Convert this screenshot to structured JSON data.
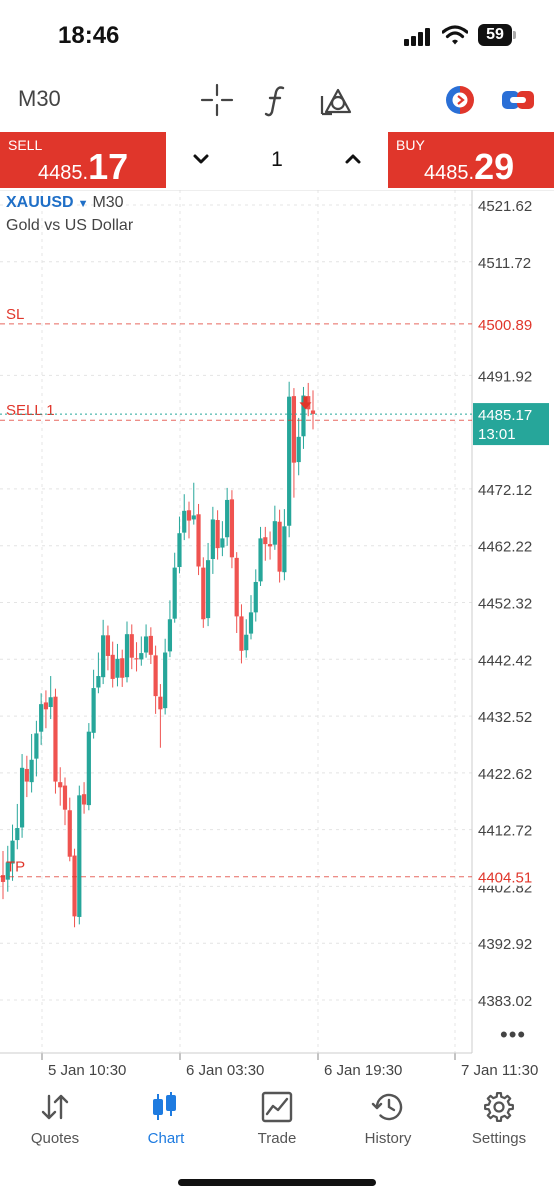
{
  "status_bar": {
    "time": "18:46",
    "battery": "59"
  },
  "toolbar": {
    "timeframe": "M30",
    "icons": [
      "crosshair-icon",
      "function-icon",
      "objects-icon",
      "one-click-trading-icon",
      "account-switch-icon"
    ]
  },
  "trade_bar": {
    "sell_label": "SELL",
    "sell_price_main": "4485.",
    "sell_price_big": "17",
    "buy_label": "BUY",
    "buy_price_main": "4485.",
    "buy_price_big": "29",
    "lot": "1"
  },
  "chart": {
    "symbol": "XAUUSD",
    "dropdown_glyph": "▼",
    "timeframe": "M30",
    "description": "Gold vs US Dollar",
    "more": "•••",
    "colors": {
      "bull": "#26a69a",
      "bear": "#ef5350",
      "line_red": "#e0362b",
      "grid": "#e4e4e4"
    }
  },
  "chart_data": {
    "type": "candlestick",
    "symbol": "XAUUSD",
    "timeframe": "M30",
    "y_ticks": [
      "4521.62",
      "4511.72",
      "4491.92",
      "4472.12",
      "4462.22",
      "4452.32",
      "4442.42",
      "4432.52",
      "4422.62",
      "4412.72",
      "4402.82",
      "4392.92",
      "4383.02"
    ],
    "x_ticks": [
      "5 Jan 10:30",
      "6 Jan 03:30",
      "6 Jan 19:30",
      "7 Jan 11:30"
    ],
    "ylim": [
      4377.6,
      4527.6
    ],
    "price_lines": [
      {
        "label": "SL",
        "price": 4500.89,
        "tag": "4500.89"
      },
      {
        "label": "SELL 1",
        "price": 4484.1
      },
      {
        "label": "TP",
        "price": 4404.51,
        "tag": "4404.51"
      }
    ],
    "bid": {
      "price": 4485.17,
      "tag": "4485.17",
      "countdown": "13:01"
    },
    "candles": [
      [
        4404.8,
        4403.6,
        4409.0,
        4400.6
      ],
      [
        4404.0,
        4407.0,
        4409.9,
        4401.9
      ],
      [
        4406.8,
        4410.8,
        4413.6,
        4403.8
      ],
      [
        4410.9,
        4413.0,
        4417.2,
        4409.3
      ],
      [
        4413.1,
        4423.5,
        4425.9,
        4411.3
      ],
      [
        4423.3,
        4421.1,
        4425.6,
        4418.4
      ],
      [
        4421.0,
        4424.9,
        4429.4,
        4419.2
      ],
      [
        4425.1,
        4429.5,
        4431.7,
        4422.0
      ],
      [
        4429.8,
        4434.6,
        4436.5,
        4427.5
      ],
      [
        4434.9,
        4433.7,
        4437.0,
        4430.4
      ],
      [
        4434.1,
        4435.8,
        4439.5,
        4432.0
      ],
      [
        4435.9,
        4421.1,
        4437.3,
        4419.0
      ],
      [
        4421.0,
        4420.1,
        4423.6,
        4416.9
      ],
      [
        4420.4,
        4416.2,
        4421.8,
        4413.5
      ],
      [
        4416.1,
        4408.0,
        4418.3,
        4407.2
      ],
      [
        4408.2,
        4397.6,
        4409.4,
        4395.7
      ],
      [
        4397.5,
        4418.7,
        4420.4,
        4396.2
      ],
      [
        4418.9,
        4417.1,
        4421.0,
        4415.5
      ],
      [
        4417.0,
        4429.8,
        4431.3,
        4416.1
      ],
      [
        4429.6,
        4437.4,
        4440.6,
        4428.6
      ],
      [
        4437.5,
        4439.5,
        4443.6,
        4436.5
      ],
      [
        4439.3,
        4446.6,
        4449.3,
        4438.1
      ],
      [
        4446.6,
        4443.0,
        4448.3,
        4440.5
      ],
      [
        4443.2,
        4439.0,
        4445.5,
        4437.5
      ],
      [
        4439.2,
        4442.5,
        4445.1,
        4437.7
      ],
      [
        4442.6,
        4439.2,
        4444.1,
        4437.6
      ],
      [
        4439.3,
        4446.8,
        4449.0,
        4438.4
      ],
      [
        4446.8,
        4442.7,
        4448.5,
        4440.7
      ],
      [
        4442.6,
        4442.4,
        4445.4,
        4440.3
      ],
      [
        4442.4,
        4443.5,
        4446.4,
        4441.3
      ],
      [
        4443.6,
        4446.4,
        4448.5,
        4442.7
      ],
      [
        4446.5,
        4443.2,
        4448.0,
        4441.6
      ],
      [
        4443.1,
        4436.0,
        4444.8,
        4432.9
      ],
      [
        4435.9,
        4433.7,
        4438.1,
        4427.0
      ],
      [
        4433.9,
        4443.6,
        4446.0,
        4432.8
      ],
      [
        4443.8,
        4449.4,
        4452.7,
        4442.8
      ],
      [
        4449.5,
        4458.4,
        4461.0,
        4448.8
      ],
      [
        4458.5,
        4464.4,
        4467.3,
        4457.4
      ],
      [
        4464.5,
        4468.3,
        4471.2,
        4463.2
      ],
      [
        4468.4,
        4466.6,
        4469.9,
        4463.5
      ],
      [
        4466.8,
        4467.5,
        4473.2,
        4465.9
      ],
      [
        4467.7,
        4458.6,
        4469.5,
        4457.1
      ],
      [
        4458.4,
        4449.4,
        4460.2,
        4447.9
      ],
      [
        4449.6,
        4459.7,
        4462.7,
        4448.2
      ],
      [
        4459.9,
        4466.8,
        4469.0,
        4457.3
      ],
      [
        4466.7,
        4461.8,
        4468.4,
        4459.8
      ],
      [
        4461.9,
        4463.5,
        4466.5,
        4460.4
      ],
      [
        4463.7,
        4470.2,
        4472.3,
        4462.2
      ],
      [
        4470.3,
        4460.2,
        4471.9,
        4458.3
      ],
      [
        4460.1,
        4449.9,
        4461.1,
        4447.0
      ],
      [
        4449.9,
        4443.9,
        4452.0,
        4441.7
      ],
      [
        4444.0,
        4446.7,
        4449.4,
        4442.7
      ],
      [
        4446.9,
        4450.6,
        4453.6,
        4445.9
      ],
      [
        4450.6,
        4455.9,
        4458.1,
        4449.0
      ],
      [
        4456.0,
        4463.5,
        4465.5,
        4455.2
      ],
      [
        4463.7,
        4462.5,
        4465.5,
        4459.6
      ],
      [
        4462.5,
        4462.1,
        4464.7,
        4459.8
      ],
      [
        4462.4,
        4466.5,
        4469.2,
        4461.5
      ],
      [
        4466.4,
        4457.7,
        4468.5,
        4455.8
      ],
      [
        4457.6,
        4465.6,
        4468.6,
        4456.2
      ],
      [
        4465.7,
        4488.2,
        4490.8,
        4463.7
      ],
      [
        4488.3,
        4476.7,
        4489.7,
        4470.6
      ],
      [
        4476.8,
        4481.2,
        4484.5,
        4474.5
      ],
      [
        4481.3,
        4488.4,
        4489.9,
        4479.1
      ],
      [
        4488.3,
        4486.0,
        4490.6,
        4484.8
      ],
      [
        4485.8,
        4485.2,
        4489.3,
        4482.5
      ]
    ]
  },
  "nav": [
    {
      "label": "Quotes",
      "icon": "quotes-arrows-icon"
    },
    {
      "label": "Chart",
      "icon": "candlestick-icon"
    },
    {
      "label": "Trade",
      "icon": "trade-chart-icon"
    },
    {
      "label": "History",
      "icon": "history-clock-icon"
    },
    {
      "label": "Settings",
      "icon": "gear-icon"
    }
  ]
}
